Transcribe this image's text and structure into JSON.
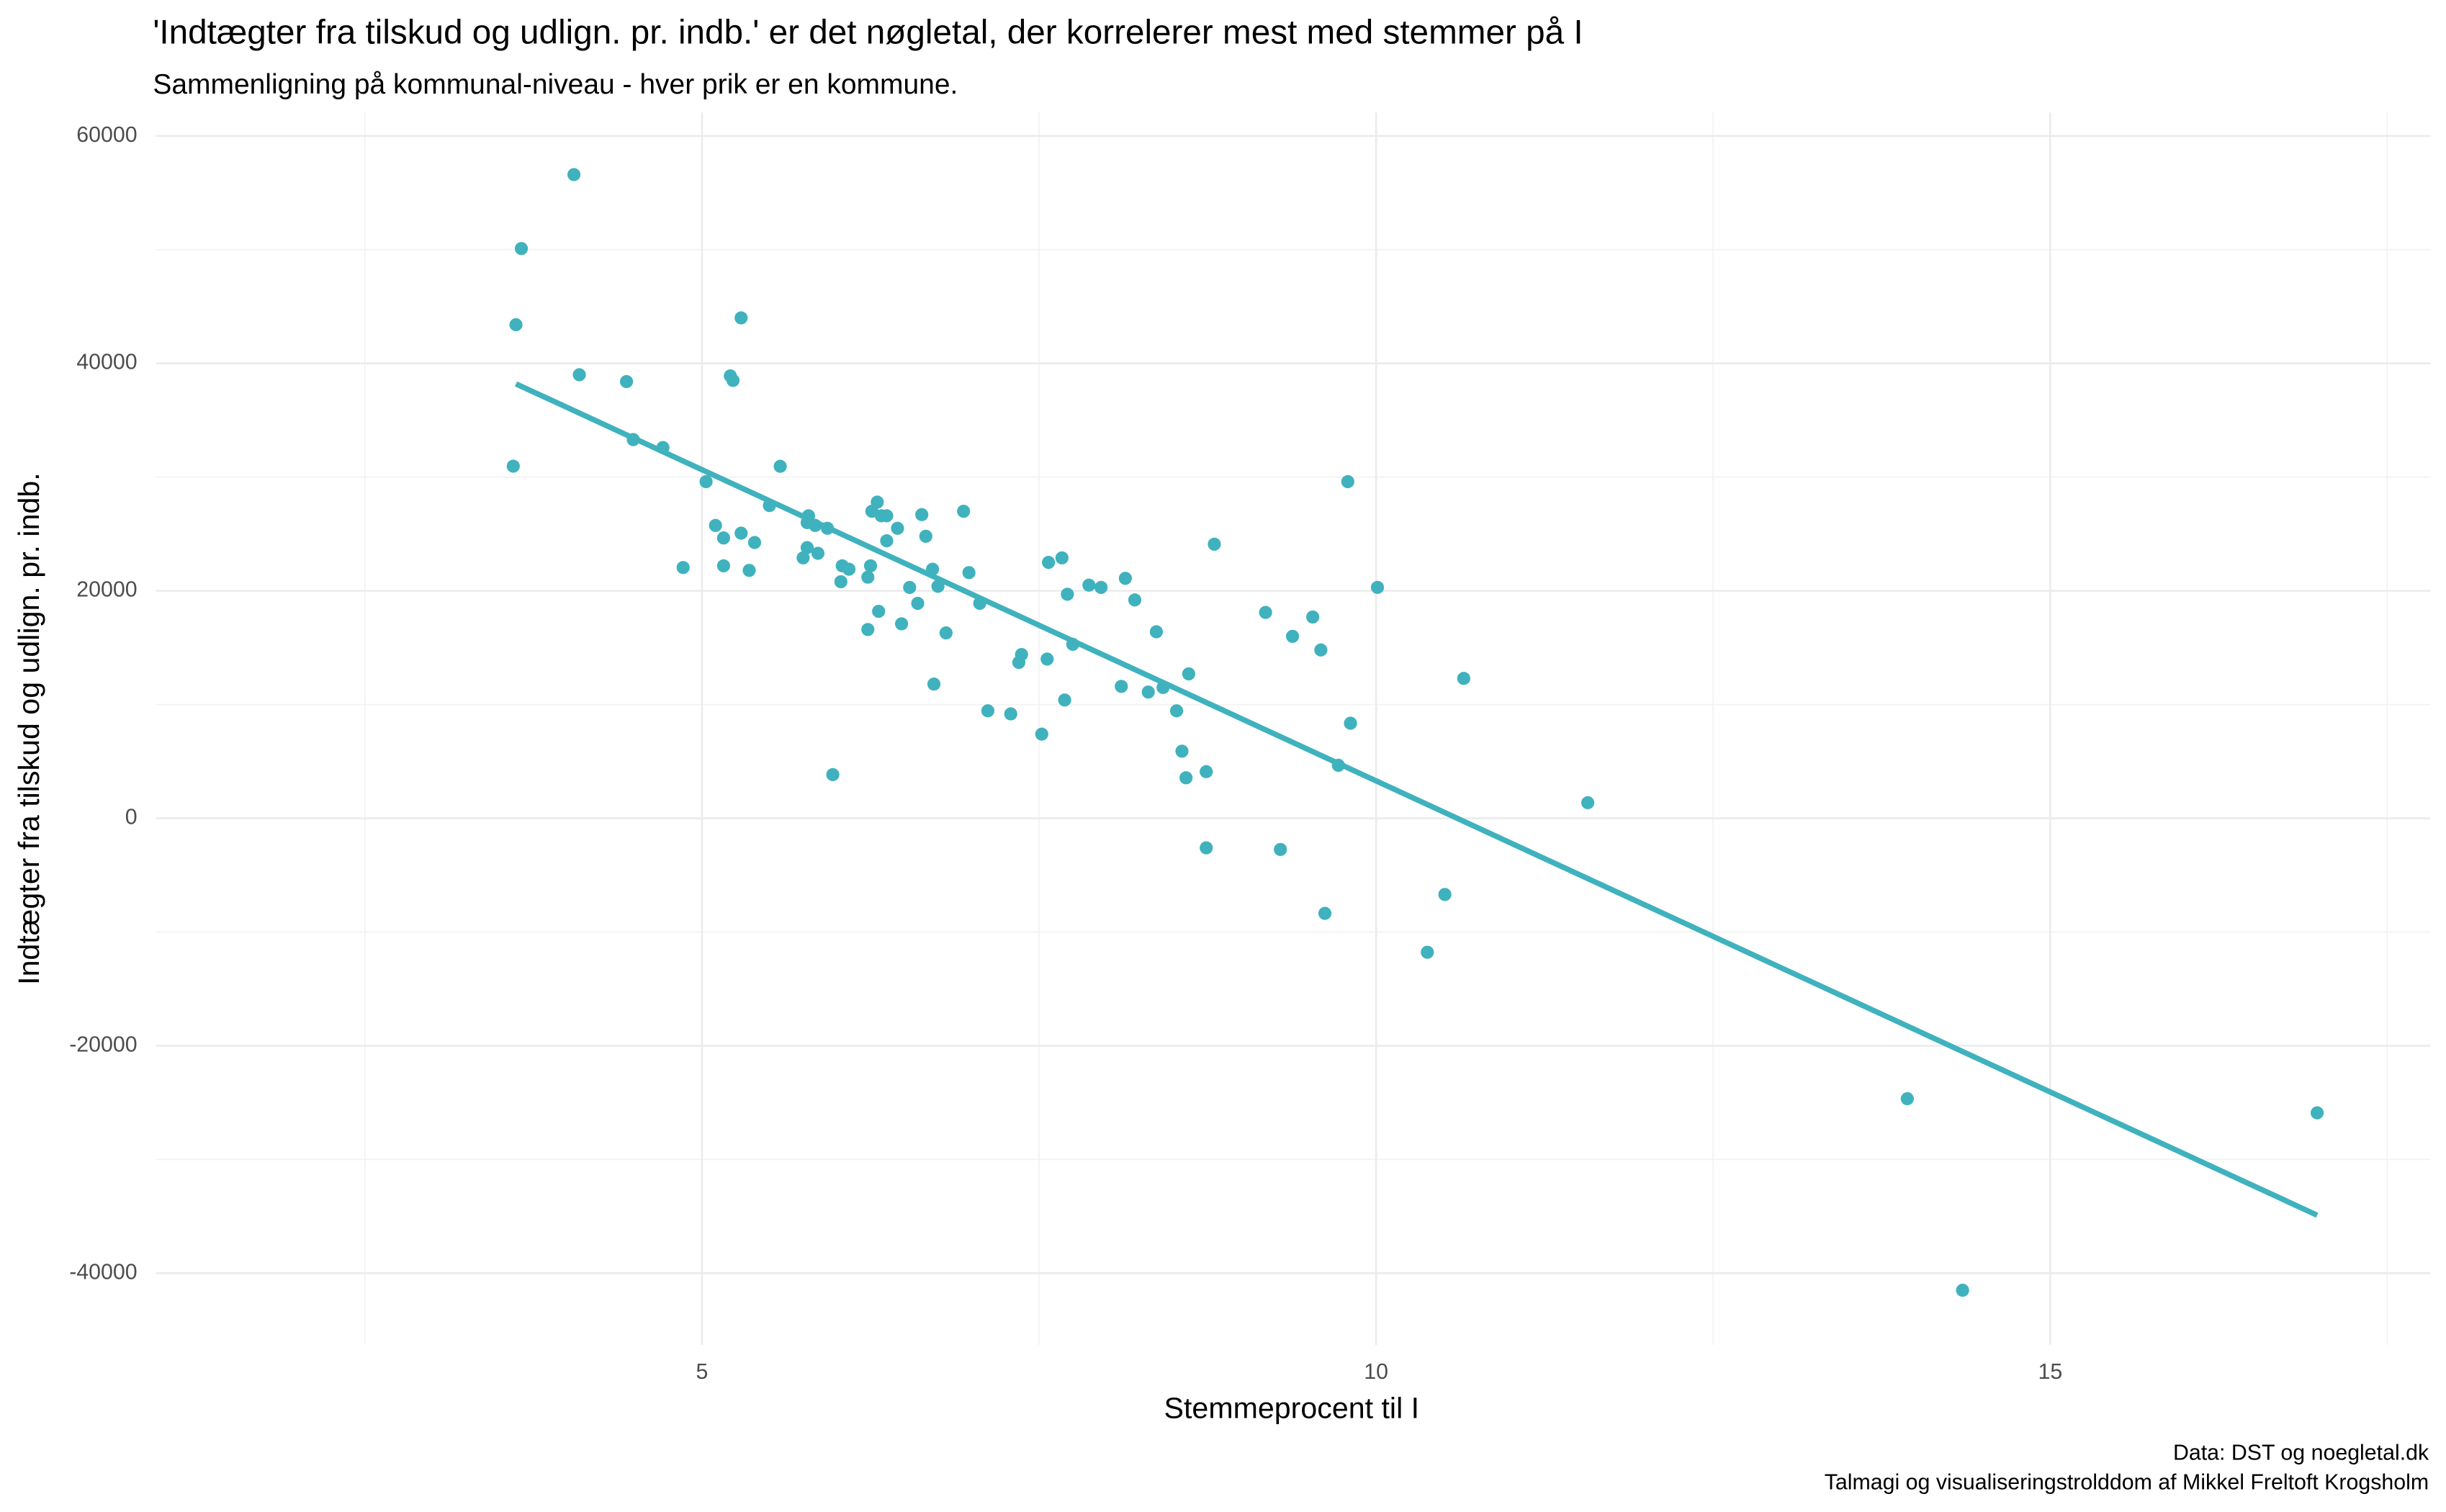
{
  "chart_data": {
    "type": "scatter",
    "title": "'Indtægter fra tilskud og udlign. pr. indb.' er det nøgletal, der korrelerer mest med stemmer på I",
    "subtitle": "Sammenligning på kommunal-niveau - hver prik er en kommune.",
    "x_label": "Stemmeprocent til I",
    "y_label": "Indtægter fra tilskud og udlign. pr. indb.",
    "caption": [
      "Data: DST og noegletal.dk",
      "Talmagi og visualiseringstrolddom af Mikkel Freltoft Krogsholm"
    ],
    "color": "#3fb2be",
    "xlim": [
      0.95,
      17.82
    ],
    "xticks": [
      5,
      10,
      15
    ],
    "x_minor_grid": [
      2.5,
      7.5,
      12.5,
      17.5
    ],
    "ylim": [
      -46300,
      62055
    ],
    "yticks": [
      -40000,
      -20000,
      0,
      20000,
      40000,
      60000
    ],
    "y_minor_grid": [
      -30000,
      -10000,
      10000,
      30000,
      50000
    ],
    "grid": true,
    "x": [
      3.62,
      3.66,
      3.6,
      4.05,
      4.09,
      4.44,
      4.49,
      4.71,
      4.86,
      5.03,
      5.29,
      5.21,
      5.23,
      5.1,
      5.16,
      5.16,
      5.29,
      5.35,
      5.39,
      5.5,
      5.58,
      5.79,
      5.78,
      5.84,
      5.93,
      5.75,
      5.78,
      5.86,
      6.04,
      6.09,
      6.03,
      6.23,
      6.25,
      6.26,
      6.3,
      6.33,
      6.37,
      6.37,
      6.45,
      5.97,
      6.23,
      6.31,
      6.48,
      6.54,
      6.6,
      6.63,
      6.66,
      6.71,
      6.75,
      6.81,
      6.72,
      6.94,
      6.98,
      7.06,
      7.12,
      7.29,
      7.35,
      7.37,
      7.52,
      7.56,
      7.57,
      7.67,
      7.71,
      7.69,
      7.75,
      7.87,
      7.96,
      8.14,
      8.21,
      8.11,
      8.31,
      8.37,
      8.42,
      8.52,
      8.61,
      8.56,
      8.59,
      8.74,
      8.74,
      8.8,
      9.18,
      9.38,
      9.53,
      9.59,
      9.79,
      9.81,
      9.72,
      9.29,
      9.62,
      10.01,
      10.38,
      10.51,
      10.65,
      11.57,
      13.94,
      14.35,
      16.98
    ],
    "y": [
      43400,
      50100,
      30960,
      56600,
      39000,
      38400,
      33300,
      32600,
      22050,
      29600,
      44000,
      38900,
      38500,
      25750,
      24650,
      22200,
      25070,
      21800,
      24250,
      27500,
      30950,
      26600,
      26000,
      25750,
      25500,
      22900,
      23800,
      23300,
      22200,
      21900,
      20800,
      21200,
      22200,
      27000,
      27800,
      26600,
      26600,
      24400,
      25500,
      3840,
      16600,
      18200,
      17100,
      20300,
      18900,
      26700,
      24800,
      21900,
      20400,
      16300,
      11800,
      27000,
      21600,
      18900,
      9450,
      9180,
      13700,
      14400,
      7400,
      14000,
      22500,
      22900,
      19700,
      10400,
      15300,
      20500,
      20300,
      21100,
      19200,
      11600,
      11100,
      16400,
      11500,
      9450,
      12700,
      5900,
      3560,
      4100,
      -2600,
      24100,
      18100,
      16000,
      17700,
      14800,
      29600,
      8360,
      4660,
      -2740,
      -8360,
      20300,
      -11780,
      -6700,
      12300,
      1370,
      -24660,
      -41500,
      -25900
    ],
    "trend_line": {
      "x": [
        3.62,
        16.98
      ],
      "y": [
        38200,
        -34900
      ]
    }
  }
}
